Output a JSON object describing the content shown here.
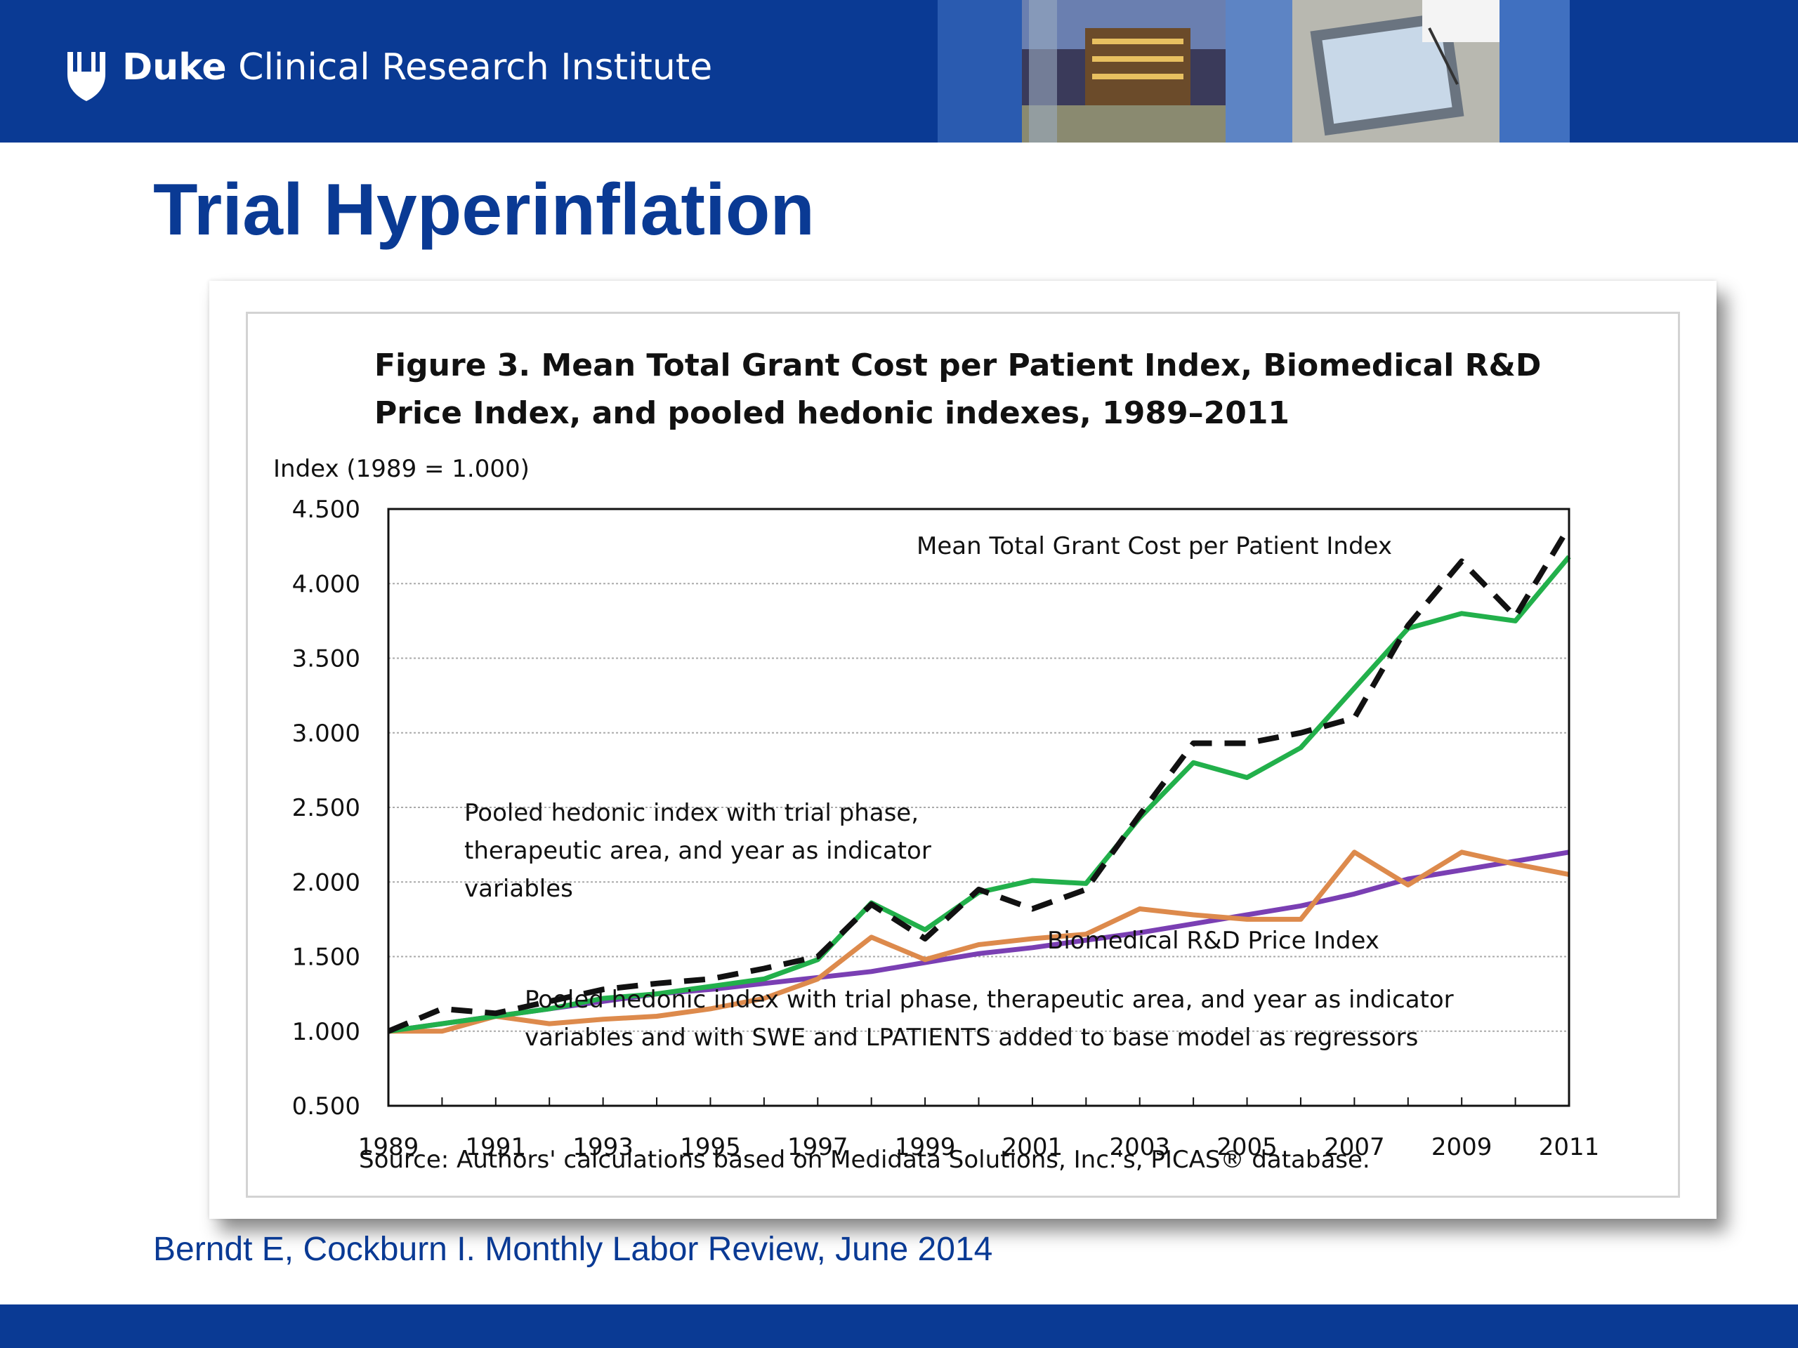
{
  "header": {
    "org_name_bold": "Duke",
    "org_name_rest": " Clinical Research Institute"
  },
  "slide": {
    "title": "Trial Hyperinflation",
    "citation": "Berndt E, Cockburn I.  Monthly Labor Review, June 2014"
  },
  "colors": {
    "brand_blue": "#0a3a94",
    "mean_grant": "#111111",
    "pooled_hedonic": "#22b04b",
    "pooled_hedonic_swe": "#dd8a4c",
    "biomedical": "#7a3fb3"
  },
  "chart_data": {
    "type": "line",
    "title_line1": "Figure 3. Mean Total Grant Cost per Patient Index, Biomedical R&D",
    "title_line2": "Price Index, and pooled hedonic indexes, 1989–2011",
    "ylabel": "Index (1989 = 1.000)",
    "source": "Source: Authors' calculations based on Medidata Solutions, Inc.'s, PICAS® database.",
    "ylim": [
      0.5,
      4.5
    ],
    "xlim": [
      1989,
      2011
    ],
    "grid": true,
    "y_ticks": [
      "0.500",
      "1.000",
      "1.500",
      "2.000",
      "2.500",
      "3.000",
      "3.500",
      "4.000",
      "4.500"
    ],
    "x_ticks": [
      "1989",
      "1991",
      "1993",
      "1995",
      "1997",
      "1999",
      "2001",
      "2003",
      "2005",
      "2007",
      "2009",
      "2011"
    ],
    "x": [
      1989,
      1990,
      1991,
      1992,
      1993,
      1994,
      1995,
      1996,
      1997,
      1998,
      1999,
      2000,
      2001,
      2002,
      2003,
      2004,
      2005,
      2006,
      2007,
      2008,
      2009,
      2010,
      2011
    ],
    "series": [
      {
        "name": "Mean Total Grant Cost per Patient Index",
        "key": "mean_grant",
        "style": "dashed",
        "values": [
          1.0,
          1.15,
          1.12,
          1.2,
          1.28,
          1.32,
          1.35,
          1.42,
          1.5,
          1.85,
          1.62,
          1.95,
          1.82,
          1.95,
          2.45,
          2.93,
          2.93,
          3.0,
          3.1,
          3.72,
          4.15,
          3.78,
          4.38
        ]
      },
      {
        "name": "Pooled hedonic index with trial phase, therapeutic area, and year as indicator variables",
        "key": "pooled_hedonic",
        "style": "solid",
        "values": [
          1.0,
          1.05,
          1.1,
          1.15,
          1.22,
          1.25,
          1.3,
          1.35,
          1.48,
          1.86,
          1.68,
          1.93,
          2.01,
          1.99,
          2.43,
          2.8,
          2.7,
          2.9,
          3.3,
          3.7,
          3.8,
          3.75,
          4.18
        ]
      },
      {
        "name": "Pooled hedonic index with trial phase, therapeutic area, and year as indicator variables and with SWE and LPATIENTS added to base model as regressors",
        "key": "pooled_hedonic_swe",
        "style": "solid",
        "values": [
          1.0,
          1.0,
          1.1,
          1.05,
          1.08,
          1.1,
          1.15,
          1.22,
          1.35,
          1.63,
          1.48,
          1.58,
          1.62,
          1.65,
          1.82,
          1.78,
          1.75,
          1.75,
          2.2,
          1.98,
          2.2,
          2.12,
          2.05
        ]
      },
      {
        "name": "Biomedical R&D Price Index",
        "key": "biomedical",
        "style": "solid",
        "values": [
          1.0,
          1.05,
          1.1,
          1.15,
          1.2,
          1.25,
          1.28,
          1.32,
          1.36,
          1.4,
          1.46,
          1.52,
          1.56,
          1.61,
          1.66,
          1.72,
          1.78,
          1.84,
          1.92,
          2.02,
          2.08,
          2.14,
          2.2
        ]
      }
    ],
    "annotations": {
      "mean_grant": "Mean Total Grant Cost per Patient Index",
      "pooled_hedonic": [
        "Pooled hedonic index with trial phase,",
        "therapeutic area, and year as indicator",
        "variables"
      ],
      "biomedical": "Biomedical R&D Price Index",
      "pooled_hedonic_swe": [
        "Pooled hedonic index with trial phase, therapeutic area, and year as indicator",
        "variables and with SWE and LPATIENTS added to base model as regressors"
      ]
    }
  }
}
